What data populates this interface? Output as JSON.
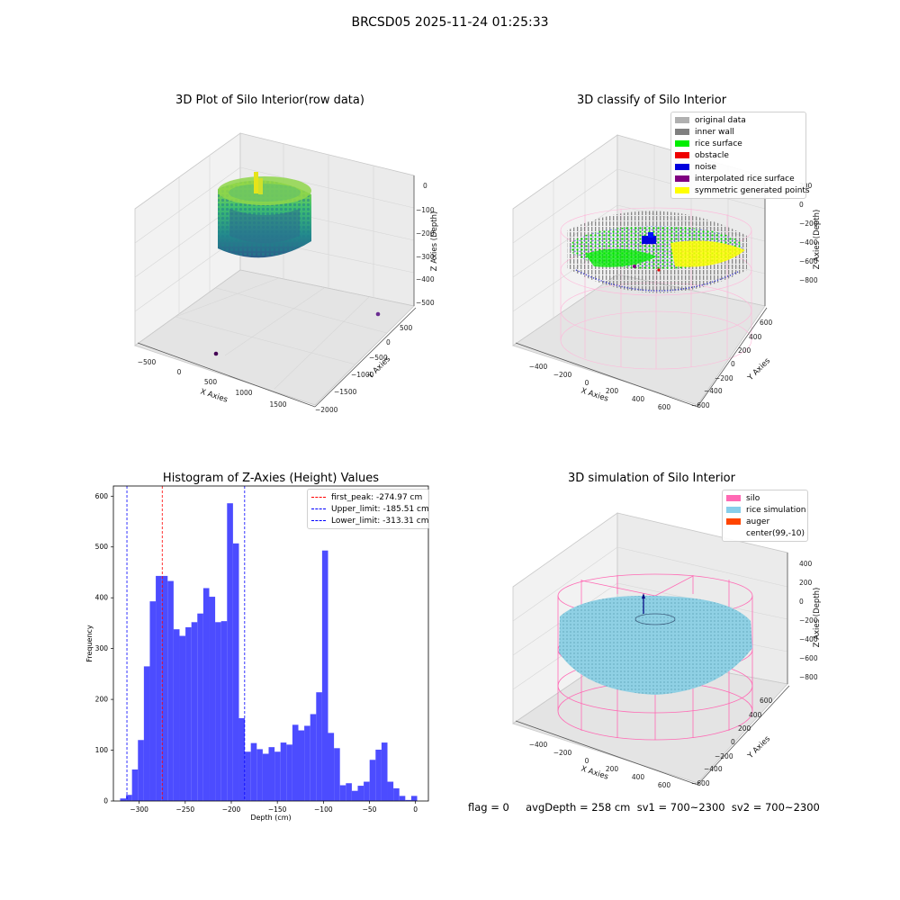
{
  "suptitle": "BRCSD05 2025-11-24 01:25:33",
  "status_line": "flag = 0     avgDepth = 258 cm  sv1 = 700~2300  sv2 = 700~2300",
  "panels": {
    "raw": {
      "title": "3D Plot of Silo Interior(row data)",
      "xlabel": "X Axies",
      "ylabel": "Y Axies",
      "zlabel": "Z Axies (Depth)",
      "xticks": [
        "−500",
        "0",
        "500",
        "1000",
        "1500"
      ],
      "yticks": [
        "500",
        "0",
        "−500",
        "−1000",
        "−1500",
        "−2000"
      ],
      "zticks": [
        "0",
        "−100",
        "−200",
        "−300",
        "−400",
        "−500"
      ]
    },
    "classify": {
      "title": "3D classify of Silo Interior",
      "xlabel": "X Axies",
      "ylabel": "Y Axies",
      "zlabel": "Z Axies (Depth)",
      "xticks": [
        "−400",
        "−200",
        "0",
        "200",
        "400",
        "600"
      ],
      "yticks": [
        "600",
        "400",
        "200",
        "0",
        "−200",
        "−400",
        "−600"
      ],
      "zticks": [
        "200",
        "0",
        "−200",
        "−400",
        "−600",
        "−800"
      ],
      "legend": [
        {
          "label": "original data",
          "color": "#b0b0b0"
        },
        {
          "label": "inner wall",
          "color": "#808080"
        },
        {
          "label": "rice surface",
          "color": "#00ee00"
        },
        {
          "label": "obstacle",
          "color": "#ee0000"
        },
        {
          "label": "noise",
          "color": "#0000dd"
        },
        {
          "label": "interpolated rice surface",
          "color": "#800080"
        },
        {
          "label": "symmetric generated points",
          "color": "#ffff00"
        }
      ]
    },
    "simulation": {
      "title": "3D simulation of Silo Interior",
      "xlabel": "X Axies",
      "ylabel": "Y Axies",
      "zlabel": "Z Axies (Depth)",
      "xticks": [
        "−400",
        "−200",
        "0",
        "200",
        "400",
        "600"
      ],
      "yticks": [
        "600",
        "400",
        "200",
        "0",
        "−200",
        "−400",
        "−600"
      ],
      "zticks": [
        "400",
        "200",
        "0",
        "−200",
        "−400",
        "−600",
        "−800"
      ],
      "legend": [
        {
          "label": "silo",
          "color": "#ff69b4"
        },
        {
          "label": "rice simulation",
          "color": "#87ceeb"
        },
        {
          "label": "auger",
          "color": "#ff4500"
        },
        {
          "label": "center(99,-10)",
          "color": ""
        }
      ]
    }
  },
  "chart_data": {
    "type": "bar",
    "title": "Histogram of Z-Axies (Height) Values",
    "xlabel": "Depth (cm)",
    "ylabel": "Frequency",
    "xlim": [
      -328,
      14
    ],
    "ylim": [
      0,
      620
    ],
    "xticks": [
      -300,
      -250,
      -200,
      -150,
      -100,
      -50,
      0
    ],
    "xtick_labels": [
      "−300",
      "−250",
      "−200",
      "−150",
      "−100",
      "−50",
      "0"
    ],
    "yticks": [
      0,
      100,
      200,
      300,
      400,
      500,
      600
    ],
    "ytick_labels": [
      "0",
      "100",
      "200",
      "300",
      "400",
      "500",
      "600"
    ],
    "bar_color": "#4c4cff",
    "bins": {
      "start": -320.7,
      "width": 6.45,
      "counts": [
        5,
        12,
        62,
        120,
        265,
        393,
        443,
        443,
        433,
        338,
        325,
        342,
        352,
        369,
        419,
        402,
        352,
        354,
        586,
        507,
        163,
        97,
        114,
        102,
        93,
        106,
        97,
        115,
        111,
        150,
        139,
        148,
        171,
        214,
        493,
        134,
        104,
        31,
        35,
        20,
        30,
        38,
        81,
        101,
        115,
        38,
        25,
        10,
        2,
        10
      ]
    },
    "vlines": [
      {
        "x": -274.97,
        "color": "#ff0000",
        "label": "first_peak: -274.97 cm"
      },
      {
        "x": -185.51,
        "color": "#0000ff",
        "label": "Upper_limit: -185.51 cm"
      },
      {
        "x": -313.31,
        "color": "#0000ff",
        "label": "Lower_limit: -313.31 cm"
      }
    ],
    "legend_position": "upper right"
  }
}
